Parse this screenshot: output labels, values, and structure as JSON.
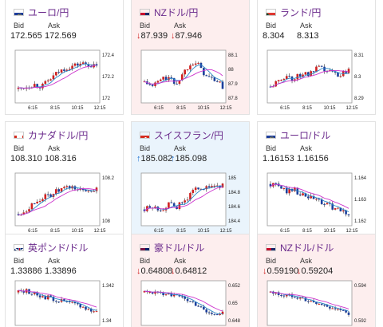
{
  "cards": [
    {
      "id": "eur-jpy",
      "pair": "ユーロ/円",
      "flag": "eu-flag-icon",
      "bid_label": "Bid",
      "ask_label": "Ask",
      "bid": "172.565",
      "ask": "172.569",
      "direction": "none",
      "bg": "plain",
      "y_ticks": [
        "172.4",
        "172.2",
        "172"
      ],
      "x_ticks": [
        "6:15",
        "8:15",
        "10:15",
        "12:15"
      ]
    },
    {
      "id": "nzd-jpy",
      "pair": "NZドル/円",
      "flag": "nz-flag-icon",
      "bid_label": "Bid",
      "ask_label": "Ask",
      "bid": "87.939",
      "ask": "87.946",
      "direction": "down",
      "bg": "down",
      "y_ticks": [
        "88.1",
        "88",
        "87.9",
        "87.8"
      ],
      "x_ticks": [
        "6:15",
        "8:15",
        "10:15",
        "12:15"
      ]
    },
    {
      "id": "zar-jpy",
      "pair": "ランド/円",
      "flag": "za-flag-icon",
      "bid_label": "Bid",
      "ask_label": "Ask",
      "bid": "8.304",
      "ask": "8.313",
      "direction": "none",
      "bg": "plain",
      "y_ticks": [
        "8.31",
        "8.3",
        "8.29"
      ],
      "x_ticks": [
        "6:15",
        "8:15",
        "10:15",
        "12:15"
      ]
    },
    {
      "id": "cad-jpy",
      "pair": "カナダドル/円",
      "flag": "ca-flag-icon",
      "bid_label": "Bid",
      "ask_label": "Ask",
      "bid": "108.310",
      "ask": "108.316",
      "direction": "none",
      "bg": "plain",
      "y_ticks": [
        "108.2",
        "108"
      ],
      "x_ticks": [
        "6:15",
        "8:15",
        "10:15",
        "12:15"
      ]
    },
    {
      "id": "chf-jpy",
      "pair": "スイスフラン/円",
      "flag": "ch-flag-icon",
      "bid_label": "Bid",
      "ask_label": "Ask",
      "bid": "185.082",
      "ask": "185.098",
      "direction": "up",
      "bg": "up",
      "y_ticks": [
        "185",
        "184.8",
        "184.6",
        "184.4"
      ],
      "x_ticks": [
        "6:15",
        "8:15",
        "10:15",
        "12:15"
      ]
    },
    {
      "id": "eur-usd",
      "pair": "ユーロ/ドル",
      "flag": "eu-flag-icon",
      "bid_label": "Bid",
      "ask_label": "Ask",
      "bid": "1.16153",
      "ask": "1.16156",
      "direction": "none",
      "bg": "plain",
      "y_ticks": [
        "1.164",
        "1.163",
        "1.162"
      ],
      "x_ticks": [
        "6:15",
        "8:15",
        "10:15",
        "12:15"
      ]
    },
    {
      "id": "gbp-usd",
      "pair": "英ポンド/ドル",
      "flag": "uk-flag-icon",
      "bid_label": "Bid",
      "ask_label": "Ask",
      "bid": "1.33886",
      "ask": "1.33896",
      "direction": "none",
      "bg": "plain",
      "y_ticks": [
        "1.342",
        "1.34"
      ],
      "x_ticks": []
    },
    {
      "id": "aud-usd",
      "pair": "豪ドル/ドル",
      "flag": "au-flag-icon",
      "bid_label": "Bid",
      "ask_label": "Ask",
      "bid": "0.64808",
      "ask": "0.64812",
      "direction": "down",
      "bg": "down",
      "y_ticks": [
        "0.652",
        "0.65",
        "0.648"
      ],
      "x_ticks": []
    },
    {
      "id": "nzd-usd",
      "pair": "NZドル/ドル",
      "flag": "nz-flag-icon",
      "bid_label": "Bid",
      "ask_label": "Ask",
      "bid": "0.59190",
      "ask": "0.59204",
      "direction": "down",
      "bg": "down",
      "y_ticks": [
        "0.594",
        "0.592"
      ],
      "x_ticks": []
    }
  ],
  "colors": {
    "pair": "#6b2b8c",
    "up": "#1a6fd0",
    "down": "#d02020",
    "ma": "#cc33cc",
    "ma2": "#2a86c8"
  }
}
